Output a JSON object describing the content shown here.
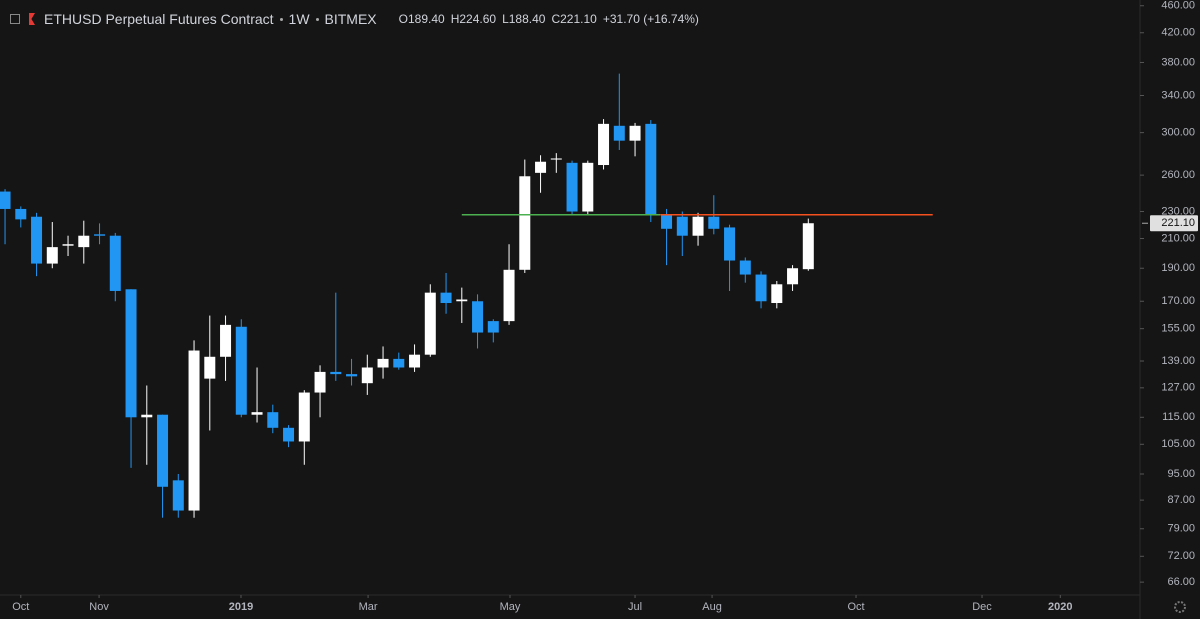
{
  "chart_data": {
    "type": "candlestick",
    "header": {
      "symbol": "ETHUSD Perpetual Futures Contract",
      "interval": "1W",
      "exchange": "BITMEX",
      "open": "O189.40",
      "high": "H224.60",
      "low": "L188.40",
      "close": "C221.10",
      "change": "+31.70 (+16.74%)"
    },
    "last_price_label": "221.10",
    "log_scale": true,
    "grid": false,
    "up_color": "#ffffff",
    "down_color": "#2196f3",
    "xlim": [
      -0.32,
      72.06
    ],
    "ylim": [
      63.2,
      469
    ],
    "xticks": [
      {
        "value": 1,
        "label": "Oct"
      },
      {
        "value": 5.97,
        "label": "Nov"
      },
      {
        "value": 14.98,
        "label": "2019"
      },
      {
        "value": 23.05,
        "label": "Mar"
      },
      {
        "value": 32.06,
        "label": "May"
      },
      {
        "value": 40,
        "label": "Jul"
      },
      {
        "value": 44.89,
        "label": "Aug"
      },
      {
        "value": 54.03,
        "label": "Oct"
      },
      {
        "value": 62.03,
        "label": "Dec"
      },
      {
        "value": 67,
        "label": "2020"
      }
    ],
    "yticks": [
      {
        "value": 460,
        "label": "460.00"
      },
      {
        "value": 420,
        "label": "420.00"
      },
      {
        "value": 380,
        "label": "380.00"
      },
      {
        "value": 340,
        "label": "340.00"
      },
      {
        "value": 300,
        "label": "300.00"
      },
      {
        "value": 260,
        "label": "260.00"
      },
      {
        "value": 230,
        "label": "230.00"
      },
      {
        "value": 210,
        "label": "210.00"
      },
      {
        "value": 190,
        "label": "190.00"
      },
      {
        "value": 170,
        "label": "170.00"
      },
      {
        "value": 155,
        "label": "155.00"
      },
      {
        "value": 139,
        "label": "139.00"
      },
      {
        "value": 127,
        "label": "127.00"
      },
      {
        "value": 115,
        "label": "115.00"
      },
      {
        "value": 105,
        "label": "105.00"
      },
      {
        "value": 95,
        "label": "95.00"
      },
      {
        "value": 87,
        "label": "87.00"
      },
      {
        "value": 79,
        "label": "79.00"
      },
      {
        "value": 72,
        "label": "72.00"
      },
      {
        "value": 66,
        "label": "66.00"
      }
    ],
    "open": [
      246,
      232,
      226,
      193,
      205,
      204,
      213,
      212,
      177,
      115,
      116,
      93,
      84,
      131,
      141,
      156,
      116,
      117,
      111,
      106,
      125,
      134,
      133,
      129,
      136,
      140,
      136,
      142,
      175,
      170,
      170,
      159,
      159,
      189,
      262,
      274,
      271,
      230,
      269,
      307,
      292,
      309,
      228,
      226,
      212,
      226,
      218,
      195,
      186,
      169,
      180,
      189.4
    ],
    "high": [
      248,
      234,
      229,
      222,
      212,
      223,
      221,
      214,
      177,
      128,
      116,
      95,
      149,
      162,
      162,
      160,
      136,
      120,
      112,
      126,
      137,
      175,
      140,
      142,
      146,
      143,
      147,
      180,
      187,
      178,
      174,
      160,
      206,
      274,
      278,
      280,
      273,
      273,
      314,
      366,
      310,
      313,
      232,
      230,
      229,
      243,
      220,
      197,
      188,
      182,
      192,
      224.6
    ],
    "low": [
      206,
      218,
      185,
      190,
      198,
      193,
      206,
      170,
      97,
      98,
      82,
      82,
      82,
      110,
      130,
      115,
      113,
      109,
      104,
      98,
      115,
      130,
      128,
      124,
      131,
      135,
      134,
      141,
      163,
      158,
      145,
      148,
      157,
      187,
      245,
      262,
      228,
      227,
      265,
      283,
      277,
      222,
      192,
      198,
      205,
      213,
      176,
      181,
      166,
      166,
      176,
      188.4
    ],
    "close": [
      232,
      224,
      193,
      204,
      206,
      212,
      212,
      176,
      115,
      116,
      91,
      84,
      144,
      141,
      157,
      116,
      117,
      111,
      106,
      125,
      134,
      133,
      132,
      136,
      140,
      136,
      142,
      175,
      169,
      171,
      153,
      153,
      189,
      259,
      272,
      275,
      230,
      271,
      309,
      292,
      307,
      228,
      217,
      212,
      226,
      217,
      195,
      186,
      170,
      180,
      190,
      221.1
    ],
    "lines": [
      {
        "value": 227.5,
        "from": 29,
        "to": 41.6,
        "color": "#4caf50"
      },
      {
        "value": 227.5,
        "from": 41.6,
        "to": 58.9,
        "color": "#f4511e"
      }
    ]
  }
}
